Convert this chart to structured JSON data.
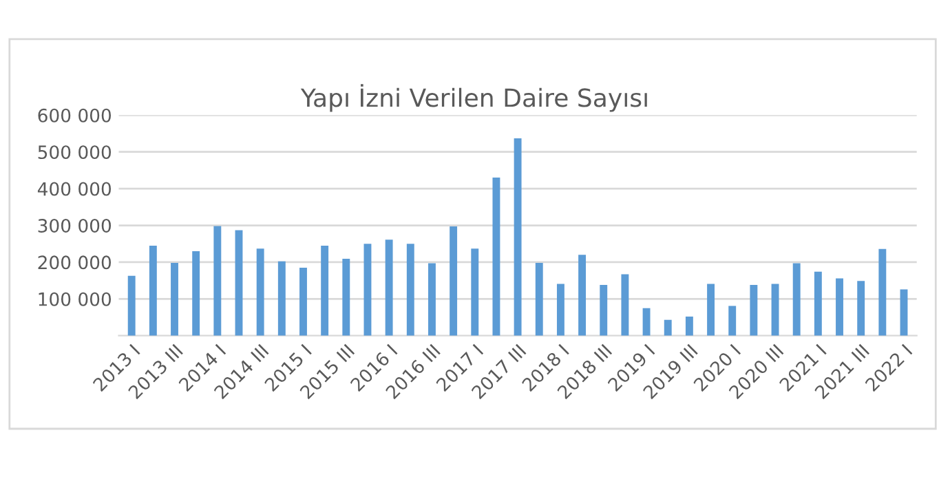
{
  "chart_data": {
    "type": "bar",
    "title": "Yapı İzni Verilen Daire Sayısı",
    "categories": [
      "2013 I",
      null,
      "2013 III",
      null,
      "2014 I",
      null,
      "2014 III",
      null,
      "2015 I",
      null,
      "2015 III",
      null,
      "2016 I",
      null,
      "2016 III",
      null,
      "2017 I",
      null,
      "2017 III",
      null,
      "2018 I",
      null,
      "2018 III",
      null,
      "2019 I",
      null,
      "2019 III",
      null,
      "2020 I",
      null,
      "2020 III",
      null,
      "2021 I",
      null,
      "2021 III",
      null,
      "2022 I"
    ],
    "values": [
      163000,
      245000,
      198000,
      230000,
      298000,
      287000,
      237000,
      202000,
      185000,
      245000,
      209000,
      250000,
      261000,
      250000,
      197000,
      297000,
      237000,
      430000,
      537000,
      198000,
      141000,
      220000,
      138000,
      167000,
      75000,
      43000,
      52000,
      141000,
      81000,
      138000,
      141000,
      197000,
      174000,
      156000,
      149000,
      236000,
      126000
    ],
    "color": "#5b9bd5",
    "ylim": [
      0,
      600000
    ],
    "yticks": [
      {
        "value": 100000,
        "label": "100 000"
      },
      {
        "value": 200000,
        "label": "200 000"
      },
      {
        "value": 300000,
        "label": "300 000"
      },
      {
        "value": 400000,
        "label": "400 000"
      },
      {
        "value": 500000,
        "label": "500 000"
      },
      {
        "value": 600000,
        "label": "600 000"
      }
    ],
    "grid": "y"
  }
}
